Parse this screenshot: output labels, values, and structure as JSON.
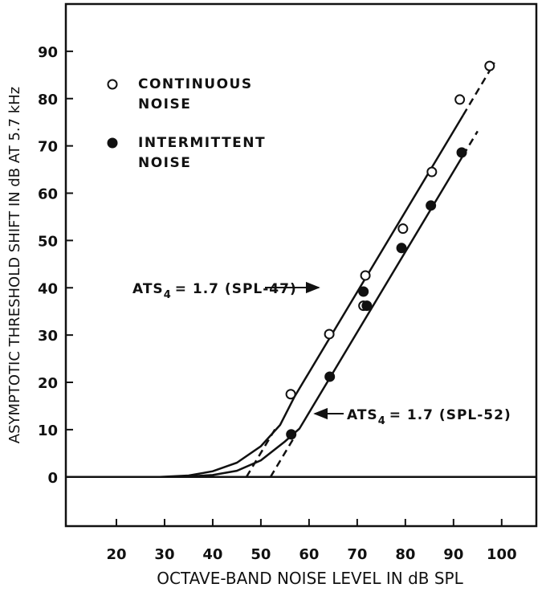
{
  "chart_data": {
    "type": "scatter",
    "xlabel": "OCTAVE-BAND NOISE LEVEL IN dB SPL",
    "ylabel": "ASYMPTOTIC THRESHOLD SHIFT IN dB AT 5.7 kHz",
    "xlim": [
      9.5,
      107.2
    ],
    "ylim": [
      -10.4,
      100
    ],
    "xticks": [
      20,
      30,
      40,
      50,
      60,
      70,
      80,
      90,
      100
    ],
    "yticks": [
      0,
      10,
      20,
      30,
      40,
      50,
      60,
      70,
      80,
      90
    ],
    "zero_line": true,
    "series": [
      {
        "name": "CONTINUOUS NOISE",
        "marker": "open",
        "color": "#111111",
        "x": [
          56.2,
          64.2,
          71.7,
          71.3,
          79.5,
          85.5,
          91.3,
          97.5
        ],
        "values": [
          17.5,
          30.2,
          42.6,
          36.2,
          52.5,
          64.5,
          79.8,
          86.9
        ]
      },
      {
        "name": "INTERMITTENT NOISE",
        "marker": "filled",
        "color": "#111111",
        "x": [
          56.3,
          64.3,
          71.3,
          72,
          79.2,
          85.3,
          91.7
        ],
        "values": [
          9,
          21.2,
          39.2,
          36.2,
          48.4,
          57.4,
          68.6
        ]
      }
    ],
    "lines": [
      {
        "style": "solid",
        "x": [
          29,
          35,
          40,
          45,
          50,
          54,
          57,
          92
        ],
        "values": [
          0,
          0.3,
          1.2,
          3,
          6.5,
          11,
          17,
          76.5
        ]
      },
      {
        "style": "dashed",
        "x": [
          92,
          98.5
        ],
        "values": [
          76.5,
          87.6
        ]
      },
      {
        "style": "dashed",
        "x": [
          47,
          53
        ],
        "values": [
          0,
          10.2
        ]
      },
      {
        "style": "solid",
        "x": [
          33,
          40,
          45,
          50,
          55,
          58,
          92
        ],
        "values": [
          0,
          0.4,
          1.3,
          3.5,
          7.5,
          10.2,
          68
        ]
      },
      {
        "style": "dashed",
        "x": [
          92,
          95
        ],
        "values": [
          68,
          73.1
        ]
      },
      {
        "style": "dashed",
        "x": [
          52,
          57
        ],
        "values": [
          0,
          8.5
        ]
      }
    ],
    "annotations": [
      {
        "text": "ATS",
        "subscript": "4",
        "rest": "= 1.7 (SPL-47)"
      },
      {
        "text": "ATS",
        "subscript": "4",
        "rest": "= 1.7 (SPL-52)"
      }
    ]
  }
}
